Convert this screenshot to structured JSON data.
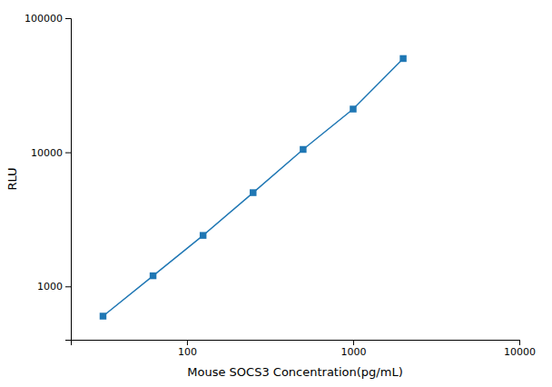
{
  "chart_data": {
    "type": "line",
    "xlabel": "Mouse SOCS3 Concentration(pg/mL)",
    "ylabel": "RLU",
    "x": [
      31.25,
      62.5,
      125,
      250,
      500,
      1000,
      2000
    ],
    "values": [
      600,
      1200,
      2400,
      5000,
      10500,
      21000,
      50000
    ],
    "xlim": [
      20,
      10000
    ],
    "ylim": [
      400,
      100000
    ],
    "xticks": [
      100,
      1000,
      10000
    ],
    "yticks": [
      1000,
      10000,
      100000
    ],
    "log": true,
    "grid": false,
    "marker": "square",
    "line_style": "solid"
  }
}
